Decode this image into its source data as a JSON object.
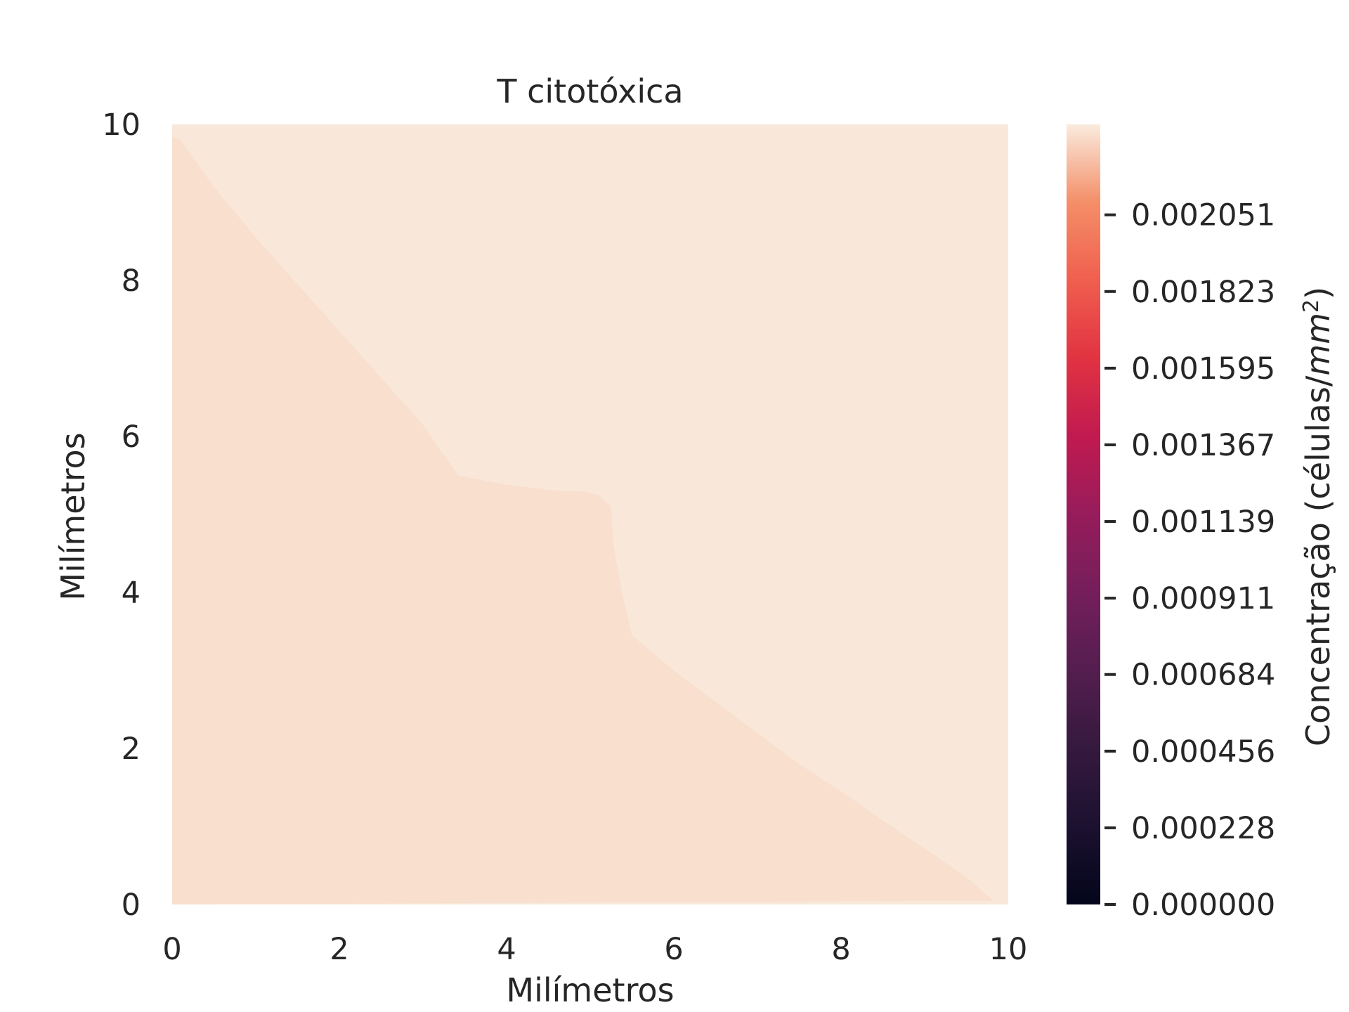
{
  "chart_data": {
    "type": "heatmap",
    "subtype": "filled-contour",
    "title": "T citotóxica",
    "xlabel": "Milímetros",
    "ylabel": "Milímetros",
    "xlim": [
      0,
      10
    ],
    "ylim": [
      0,
      10
    ],
    "x_ticks": [
      "0",
      "2",
      "4",
      "6",
      "8",
      "10"
    ],
    "y_ticks": [
      "0",
      "2",
      "4",
      "6",
      "8",
      "10"
    ],
    "grid": false,
    "colormap": "rocket",
    "colorbar": {
      "label_text": "Concentração (células/",
      "label_unit_italic": "mm",
      "label_sup": "2",
      "label_close": ")",
      "range": [
        0,
        0.00232
      ],
      "ticks": [
        0.0,
        0.000228,
        0.000456,
        0.000684,
        0.000911,
        0.001139,
        0.001367,
        0.001595,
        0.001823,
        0.002051
      ],
      "tick_labels": [
        "0.000000",
        "0.000228",
        "0.000456",
        "0.000684",
        "0.000911",
        "0.001139",
        "0.001367",
        "0.001595",
        "0.001823",
        "0.002051"
      ]
    },
    "regions": [
      {
        "level": "upper",
        "color": "#f9e8d9"
      },
      {
        "level": "lower",
        "color": "#f8dfce"
      }
    ],
    "boundary": [
      [
        0.0,
        9.85
      ],
      [
        0.1,
        9.8
      ],
      [
        0.5,
        9.2
      ],
      [
        1.0,
        8.55
      ],
      [
        1.5,
        7.95
      ],
      [
        2.0,
        7.35
      ],
      [
        2.5,
        6.75
      ],
      [
        3.0,
        6.15
      ],
      [
        3.42,
        5.5
      ],
      [
        4.0,
        5.38
      ],
      [
        4.65,
        5.3
      ],
      [
        4.9,
        5.3
      ],
      [
        5.1,
        5.25
      ],
      [
        5.25,
        5.1
      ],
      [
        5.28,
        4.6
      ],
      [
        5.38,
        4.0
      ],
      [
        5.5,
        3.45
      ],
      [
        6.0,
        3.0
      ],
      [
        6.5,
        2.6
      ],
      [
        7.0,
        2.2
      ],
      [
        7.5,
        1.8
      ],
      [
        8.0,
        1.45
      ],
      [
        8.5,
        1.08
      ],
      [
        9.0,
        0.72
      ],
      [
        9.5,
        0.35
      ],
      [
        9.82,
        0.05
      ]
    ]
  }
}
